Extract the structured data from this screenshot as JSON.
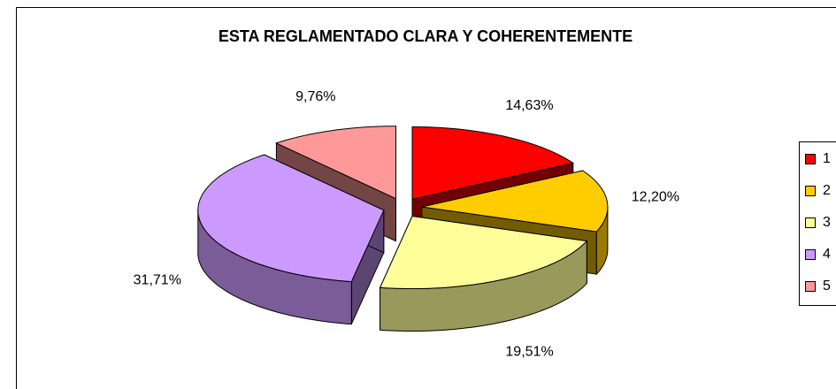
{
  "chart_data": {
    "type": "pie",
    "title": "ESTA REGLAMENTADO CLARA Y COHERENTEMENTE",
    "categories": [
      "1",
      "2",
      "3",
      "4",
      "5"
    ],
    "values": [
      14.63,
      12.2,
      19.51,
      31.71,
      9.76
    ],
    "value_labels": [
      "14,63%",
      "12,20%",
      "19,51%",
      "31,71%",
      "9,76%"
    ],
    "colors": [
      "#ff0000",
      "#ffcc00",
      "#ffff99",
      "#cc99ff",
      "#ff9999"
    ],
    "legend": "right",
    "three_d": true,
    "exploded": true
  }
}
